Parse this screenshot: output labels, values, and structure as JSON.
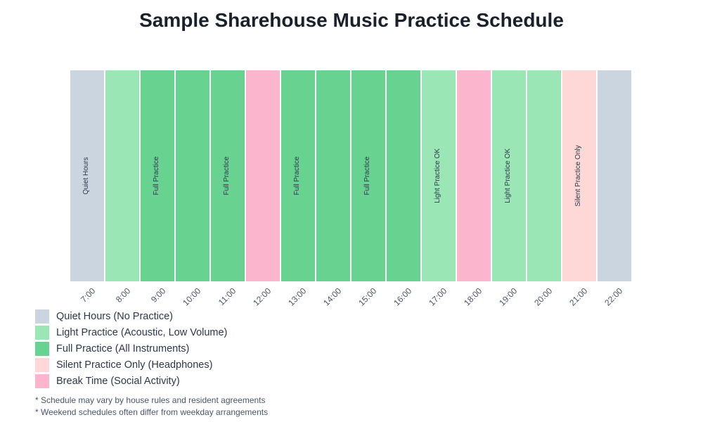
{
  "chart_data": {
    "type": "bar",
    "title": "Sample Sharehouse Music Practice Schedule",
    "categories": [
      "7:00",
      "8:00",
      "9:00",
      "10:00",
      "11:00",
      "12:00",
      "13:00",
      "14:00",
      "15:00",
      "16:00",
      "17:00",
      "18:00",
      "19:00",
      "20:00",
      "21:00",
      "22:00"
    ],
    "status": [
      "quiet",
      "light",
      "full",
      "full",
      "full",
      "break",
      "full",
      "full",
      "full",
      "full",
      "light",
      "break",
      "light",
      "light",
      "silent",
      "quiet"
    ],
    "bar_labels": [
      "Quiet Hours",
      "",
      "Full Practice",
      "",
      "Full Practice",
      "",
      "Full Practice",
      "",
      "Full Practice",
      "",
      "Light Practice OK",
      "",
      "Light Practice OK",
      "",
      "Silent Practice Only",
      ""
    ],
    "colors": {
      "quiet": "#cbd5e0",
      "light": "#9ae6b4",
      "full": "#68d391",
      "silent": "#fed7d7",
      "break": "#fbb6ce"
    },
    "legend": [
      {
        "key": "quiet",
        "label": "Quiet Hours (No Practice)"
      },
      {
        "key": "light",
        "label": "Light Practice (Acoustic, Low Volume)"
      },
      {
        "key": "full",
        "label": "Full Practice (All Instruments)"
      },
      {
        "key": "silent",
        "label": "Silent Practice Only (Headphones)"
      },
      {
        "key": "break",
        "label": "Break Time (Social Activity)"
      }
    ],
    "legend_position": "bottom-left"
  },
  "notes": [
    "* Schedule may vary by house rules and resident agreements",
    "* Weekend schedules often differ from weekday arrangements"
  ]
}
